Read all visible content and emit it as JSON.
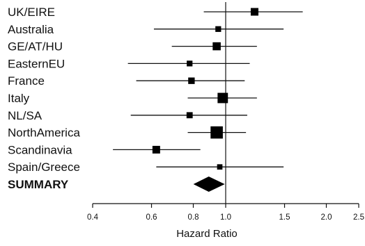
{
  "chart_data": {
    "type": "forest",
    "xlabel": "Hazard Ratio",
    "xscale": "log",
    "xlim": [
      0.4,
      2.5
    ],
    "x_ticks": [
      0.4,
      0.6,
      0.8,
      1.0,
      1.5,
      2.0,
      2.5
    ],
    "x_tick_labels": [
      "0.4",
      "0.6",
      "0.8",
      "1.0",
      "1.5",
      "2.0",
      "2.5"
    ],
    "reference_line": 1.0,
    "rows": [
      {
        "label": "UK/EIRE",
        "hr": 1.22,
        "lo": 0.86,
        "hi": 1.7,
        "weight": 1.0
      },
      {
        "label": "Australia",
        "hr": 0.95,
        "lo": 0.61,
        "hi": 1.49,
        "weight": 0.75
      },
      {
        "label": "GE/AT/HU",
        "hr": 0.94,
        "lo": 0.69,
        "hi": 1.24,
        "weight": 1.05
      },
      {
        "label": "EasternEU",
        "hr": 0.78,
        "lo": 0.51,
        "hi": 1.18,
        "weight": 0.75
      },
      {
        "label": "France",
        "hr": 0.79,
        "lo": 0.54,
        "hi": 1.14,
        "weight": 0.85
      },
      {
        "label": "Italy",
        "hr": 0.98,
        "lo": 0.77,
        "hi": 1.24,
        "weight": 1.35
      },
      {
        "label": "NL/SA",
        "hr": 0.78,
        "lo": 0.52,
        "hi": 1.16,
        "weight": 0.8
      },
      {
        "label": "NorthAmerica",
        "hr": 0.94,
        "lo": 0.77,
        "hi": 1.15,
        "weight": 1.6
      },
      {
        "label": "Scandinavia",
        "hr": 0.62,
        "lo": 0.46,
        "hi": 0.84,
        "weight": 1.0
      },
      {
        "label": "Spain/Greece",
        "hr": 0.96,
        "lo": 0.62,
        "hi": 1.49,
        "weight": 0.7
      }
    ],
    "summary": {
      "label": "SUMMARY",
      "hr": 0.89,
      "lo": 0.82,
      "hi": 0.97
    }
  }
}
